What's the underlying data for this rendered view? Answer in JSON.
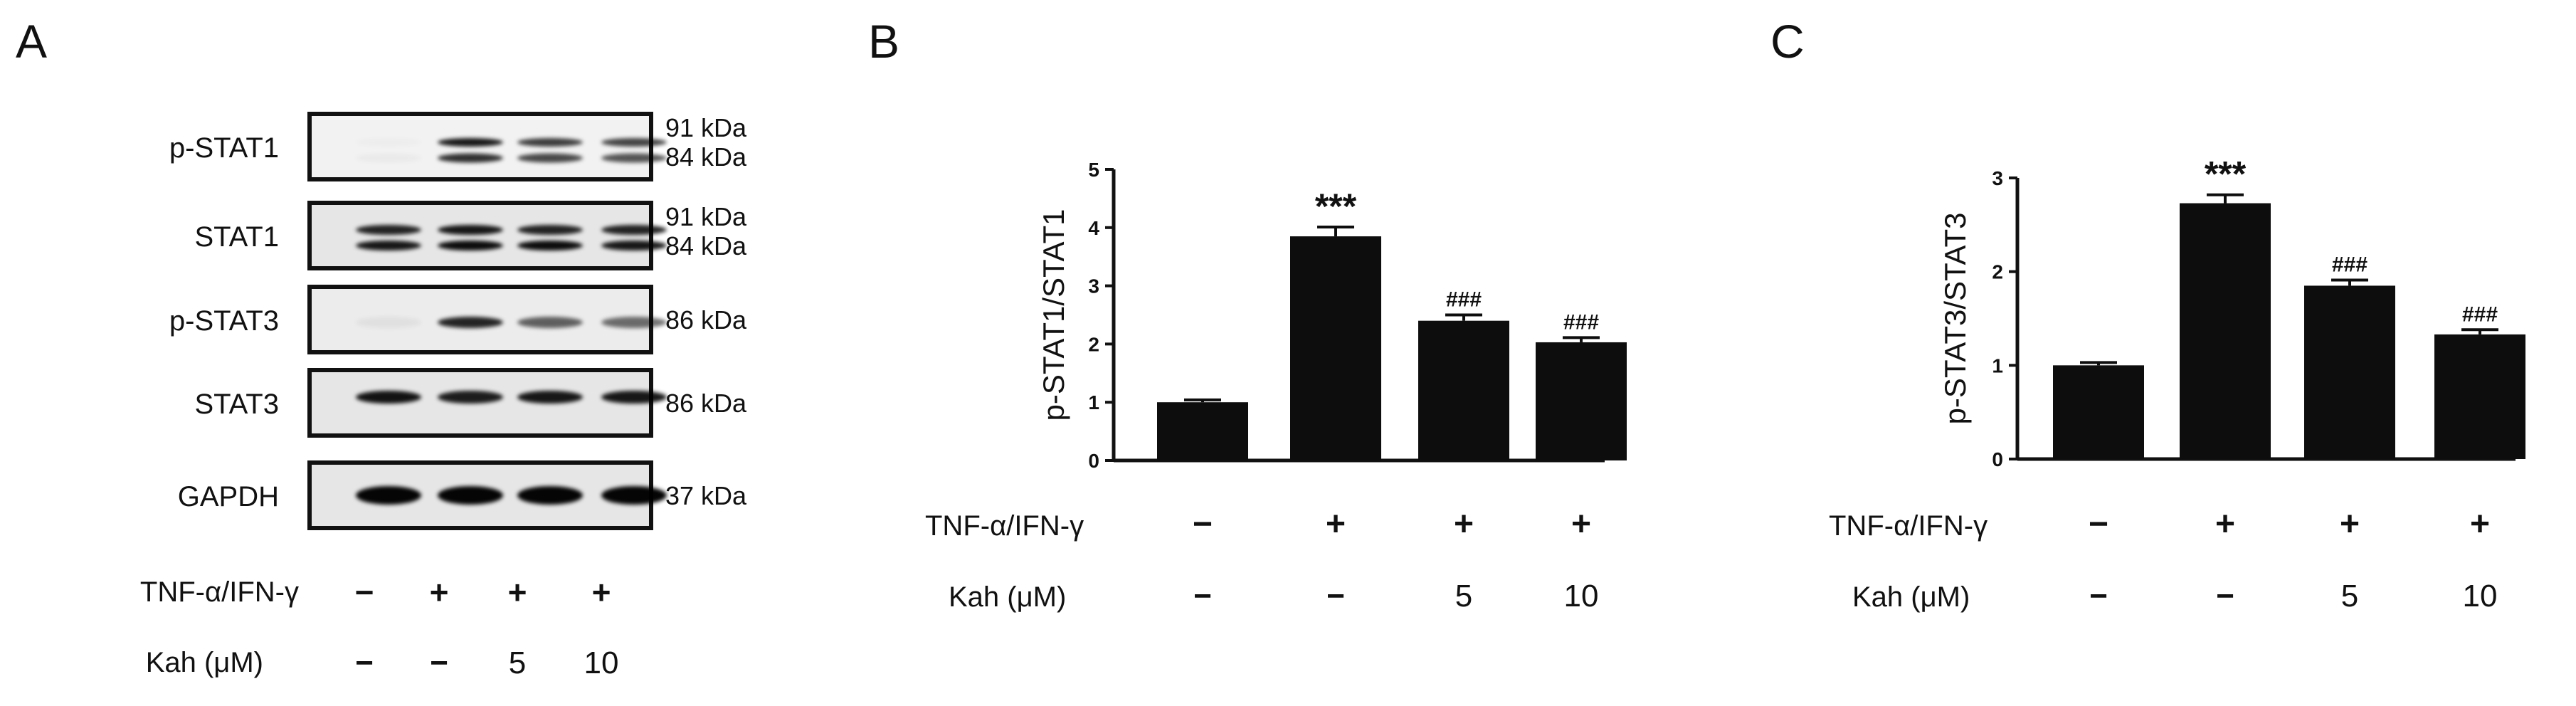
{
  "panels": {
    "a": "A",
    "b": "B",
    "c": "C"
  },
  "blot": {
    "rows": [
      {
        "name": "p-STAT1",
        "kda": [
          "91 kDa",
          "84 kDa"
        ]
      },
      {
        "name": "STAT1",
        "kda": [
          "91 kDa",
          "84 kDa"
        ]
      },
      {
        "name": "p-STAT3",
        "kda": [
          "86 kDa"
        ]
      },
      {
        "name": "STAT3",
        "kda": [
          "86 kDa"
        ]
      },
      {
        "name": "GAPDH",
        "kda": [
          "37 kDa"
        ]
      }
    ],
    "treatment_label": "TNF-α/IFN-γ",
    "treatment": [
      "−",
      "+",
      "+",
      "+"
    ],
    "kah_label": "Kah (μM)",
    "kah": [
      "−",
      "−",
      "5",
      "10"
    ]
  },
  "chart_data": [
    {
      "type": "bar",
      "ylabel": "p-STAT1/STAT1",
      "ylim": [
        0,
        5
      ],
      "yticks": [
        "0",
        "1",
        "2",
        "3",
        "4",
        "5"
      ],
      "categories": [
        "1",
        "2",
        "3",
        "4"
      ],
      "values": [
        1.0,
        3.85,
        2.4,
        2.03
      ],
      "errors": [
        0.04,
        0.16,
        0.1,
        0.08
      ],
      "annotations": [
        "",
        "***",
        "###",
        "###"
      ],
      "treatment_label": "TNF-α/IFN-γ",
      "treatment": [
        "−",
        "+",
        "+",
        "+"
      ],
      "kah_label": "Kah (μM)",
      "kah": [
        "−",
        "−",
        "5",
        "10"
      ]
    },
    {
      "type": "bar",
      "ylabel": "p-STAT3/STAT3",
      "ylim": [
        0,
        3
      ],
      "yticks": [
        "0",
        "1",
        "2",
        "3"
      ],
      "categories": [
        "1",
        "2",
        "3",
        "4"
      ],
      "values": [
        1.0,
        2.73,
        1.85,
        1.33
      ],
      "errors": [
        0.03,
        0.09,
        0.06,
        0.05
      ],
      "annotations": [
        "",
        "***",
        "###",
        "###"
      ],
      "treatment_label": "TNF-α/IFN-γ",
      "treatment": [
        "−",
        "+",
        "+",
        "+"
      ],
      "kah_label": "Kah (μM)",
      "kah": [
        "−",
        "−",
        "5",
        "10"
      ]
    }
  ]
}
